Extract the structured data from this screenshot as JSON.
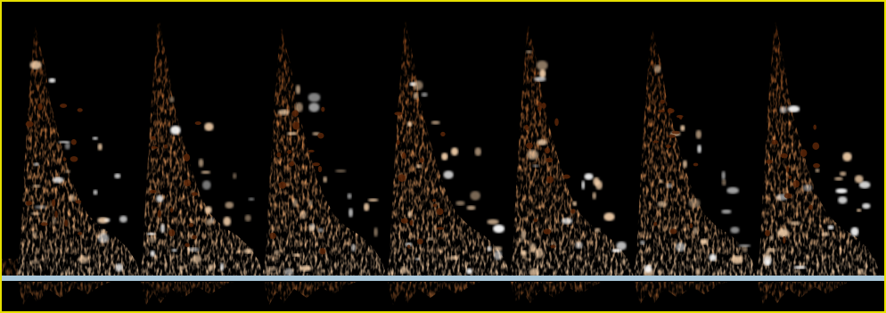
{
  "image": {
    "type": "spectral-doppler-waveform",
    "cycle_count": 7,
    "colors": {
      "background": "#000000",
      "border": "#e6e000",
      "baseline": "#a9c7da",
      "spectrum_dark": "#5a2608",
      "spectrum_mid": "#c9773a",
      "spectrum_bright": "#f6d2ac",
      "spectrum_peak": "#ffffff"
    }
  }
}
